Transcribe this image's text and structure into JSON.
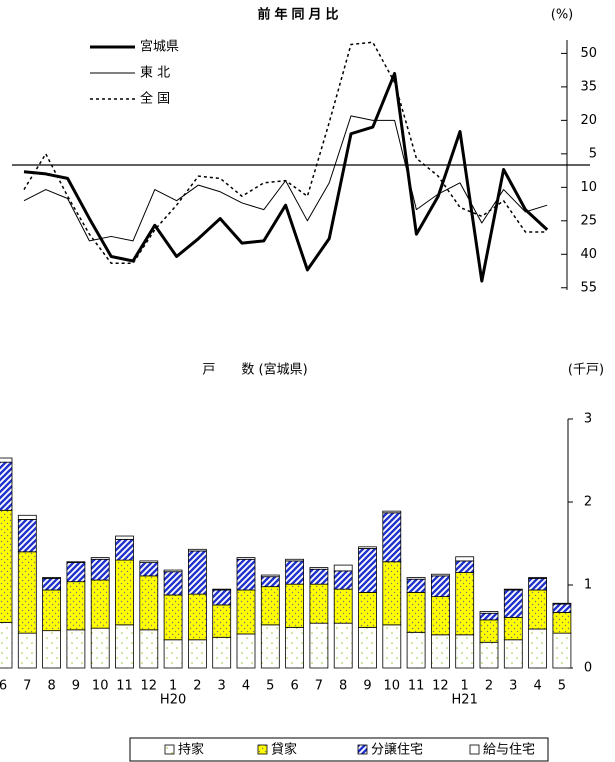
{
  "chart_data": [
    {
      "type": "line",
      "title": "前年同月比",
      "y_unit": "(%)",
      "categories": [
        null,
        null,
        null,
        null,
        null,
        null,
        null,
        null,
        null,
        null,
        null,
        null,
        null,
        null,
        null,
        null,
        null,
        null,
        null,
        null,
        null,
        null,
        null,
        null,
        null
      ],
      "ylim": [
        -56,
        56
      ],
      "yticks": [
        50,
        35,
        20,
        5,
        {
          "value": -10,
          "label": "10"
        },
        {
          "value": -25,
          "label": "25"
        },
        {
          "value": -40,
          "label": "40"
        },
        {
          "value": -55,
          "label": "55"
        }
      ],
      "reference_line": 0,
      "legend": "top-left",
      "series": [
        {
          "name": "宮城県",
          "color": "#000000",
          "width": 3,
          "dash": "none",
          "values": [
            -3,
            -4,
            -6,
            -24,
            -41,
            -43,
            -27,
            -41,
            -33,
            -24,
            -35,
            -34,
            -18,
            -47,
            -33,
            14,
            17,
            41,
            -31,
            -14,
            15,
            -52,
            -2,
            -20,
            -29
          ]
        },
        {
          "name": "東 北",
          "color": "#000000",
          "width": 1,
          "dash": "none",
          "values": [
            -16,
            -11,
            -15,
            -34,
            -32,
            -34,
            -11,
            -16,
            -9,
            -12,
            -17,
            -20,
            -7,
            -25,
            -8,
            22,
            20,
            20,
            -20,
            -13,
            -8,
            -26,
            -11,
            -21,
            -18
          ]
        },
        {
          "name": "全 国",
          "color": "#000000",
          "width": 1.5,
          "dash": "3,3",
          "values": [
            -11,
            5,
            -14,
            -31,
            -44,
            -44,
            -29,
            -18,
            -5,
            -6,
            -14,
            -8,
            -7,
            -14,
            19,
            54,
            55,
            37,
            3,
            -5,
            -19,
            -23,
            -16,
            -30,
            -30
          ]
        }
      ]
    },
    {
      "type": "bar",
      "stacked": true,
      "title": "戸　　数 (宮城県)",
      "y_unit": "(千戸)",
      "categories": [
        "6",
        "7",
        "8",
        "9",
        "10",
        "11",
        "12",
        "1",
        "2",
        "3",
        "4",
        "5",
        "6",
        "7",
        "8",
        "9",
        "10",
        "11",
        "12",
        "1",
        "2",
        "3",
        "4",
        "5"
      ],
      "year_labels": [
        null,
        null,
        null,
        null,
        null,
        null,
        null,
        "H20",
        null,
        null,
        null,
        null,
        null,
        null,
        null,
        null,
        null,
        null,
        null,
        "H21",
        null,
        null,
        null,
        null
      ],
      "ylim": [
        0,
        3
      ],
      "yticks": [
        0,
        1,
        2,
        3
      ],
      "legend": "bottom",
      "series": [
        {
          "name": "持家",
          "color": "#99cc33",
          "pattern": "sparse-dots",
          "values": [
            0.55,
            0.42,
            0.45,
            0.46,
            0.48,
            0.52,
            0.46,
            0.34,
            0.34,
            0.37,
            0.41,
            0.52,
            0.49,
            0.54,
            0.54,
            0.49,
            0.52,
            0.43,
            0.4,
            0.4,
            0.31,
            0.34,
            0.47,
            0.42
          ]
        },
        {
          "name": "貸家",
          "color": "#ffff00",
          "pattern": "dots",
          "values": [
            1.35,
            0.98,
            0.49,
            0.58,
            0.58,
            0.78,
            0.65,
            0.54,
            0.55,
            0.39,
            0.53,
            0.46,
            0.52,
            0.47,
            0.41,
            0.42,
            0.76,
            0.48,
            0.46,
            0.75,
            0.27,
            0.27,
            0.47,
            0.25
          ]
        },
        {
          "name": "分譲住宅",
          "color": "#2233cc",
          "pattern": "stripes",
          "values": [
            0.58,
            0.39,
            0.14,
            0.23,
            0.25,
            0.25,
            0.16,
            0.28,
            0.52,
            0.18,
            0.37,
            0.12,
            0.28,
            0.18,
            0.22,
            0.53,
            0.59,
            0.16,
            0.25,
            0.14,
            0.08,
            0.33,
            0.14,
            0.1
          ]
        },
        {
          "name": "給与住宅",
          "color": "#ffffff",
          "pattern": "none",
          "values": [
            0.05,
            0.05,
            0.01,
            0.01,
            0.02,
            0.04,
            0.02,
            0.02,
            0.02,
            0.01,
            0.02,
            0.02,
            0.02,
            0.02,
            0.07,
            0.02,
            0.02,
            0.02,
            0.02,
            0.05,
            0.02,
            0.01,
            0.01,
            0.01
          ]
        }
      ]
    }
  ]
}
